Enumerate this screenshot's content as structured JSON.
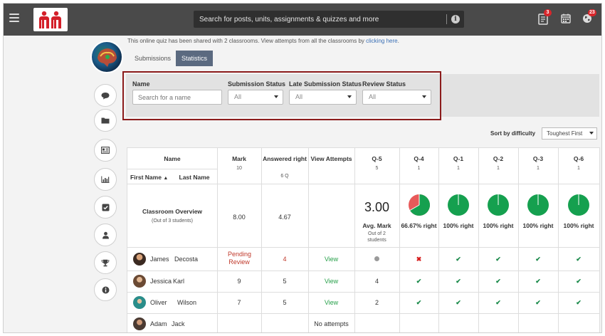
{
  "search": {
    "placeholder": "Search for posts, units, assignments & quizzes and more"
  },
  "badges": {
    "notifications": "3",
    "updates": "23"
  },
  "colors": {
    "topbar": "#4a4a4a",
    "accent": "#5b6a80",
    "highlight": "#8b1b1b",
    "correct": "#1a8a4a",
    "wrong": "#d61d1d",
    "pie_correct": "#15a04f",
    "pie_wrong": "#e85a5a"
  },
  "share_text": "This online quiz has been shared with 2 classrooms. View attempts from all the classrooms by ",
  "share_link": "clicking here",
  "share_tail": ".",
  "tabs": {
    "submissions": "Submissions",
    "statistics": "Statistics"
  },
  "filters": {
    "name_label": "Name",
    "name_placeholder": "Search for a name",
    "submission_label": "Submission Status",
    "submission_value": "All",
    "late_label": "Late Submission Status",
    "late_value": "All",
    "review_label": "Review Status",
    "review_value": "All"
  },
  "sort": {
    "label": "Sort by difficulty",
    "value": "Toughest First"
  },
  "table": {
    "name_header": "Name",
    "first_name": "First Name",
    "last_name": "Last Name",
    "mark_header": "Mark",
    "mark_max": "10",
    "answered_header": "Answered right",
    "answered_sub": "6 Q",
    "view_header": "View Attempts",
    "questions": [
      {
        "label": "Q-5",
        "points": "5"
      },
      {
        "label": "Q-4",
        "points": "1"
      },
      {
        "label": "Q-1",
        "points": "1"
      },
      {
        "label": "Q-2",
        "points": "1"
      },
      {
        "label": "Q-3",
        "points": "1"
      },
      {
        "label": "Q-6",
        "points": "1"
      }
    ],
    "overview": {
      "title": "Classroom Overview",
      "subtitle": "(Out of 3 students)",
      "mark": "8.00",
      "answered": "4.67",
      "avg_value": "3.00",
      "avg_label": "Avg. Mark",
      "avg_sub": "Out of 2",
      "avg_sub2": "students",
      "q_stats": [
        "66.67% right",
        "100% right",
        "100% right",
        "100% right",
        "100% right"
      ],
      "q_fractions": [
        0.6667,
        1,
        1,
        1,
        1
      ]
    },
    "rows": [
      {
        "first": "James",
        "last": "Decosta",
        "mark": "Pending Review",
        "answered": "4",
        "view": "View",
        "q5": "",
        "q": [
          "cross",
          "tick",
          "tick",
          "tick",
          "tick"
        ]
      },
      {
        "first": "Jessica",
        "last": "Karl",
        "mark": "9",
        "answered": "5",
        "view": "View",
        "q5": "4",
        "q": [
          "tick",
          "tick",
          "tick",
          "tick",
          "tick"
        ]
      },
      {
        "first": "Oliver",
        "last": "Wilson",
        "mark": "7",
        "answered": "5",
        "view": "View",
        "q5": "2",
        "q": [
          "tick",
          "tick",
          "tick",
          "tick",
          "tick"
        ]
      },
      {
        "first": "Adam",
        "last": "Jack",
        "mark": "",
        "answered": "",
        "view": "No attempts",
        "q5": "",
        "q": [
          "",
          "",
          "",
          "",
          ""
        ]
      }
    ]
  },
  "icons": [
    "hamburger-icon",
    "search-info-icon",
    "document-icon",
    "calendar-icon",
    "globe-icon",
    "comment-icon",
    "folder-icon",
    "id-card-icon",
    "bar-chart-icon",
    "checkbox-icon",
    "user-icon",
    "trophy-icon",
    "info-icon"
  ]
}
